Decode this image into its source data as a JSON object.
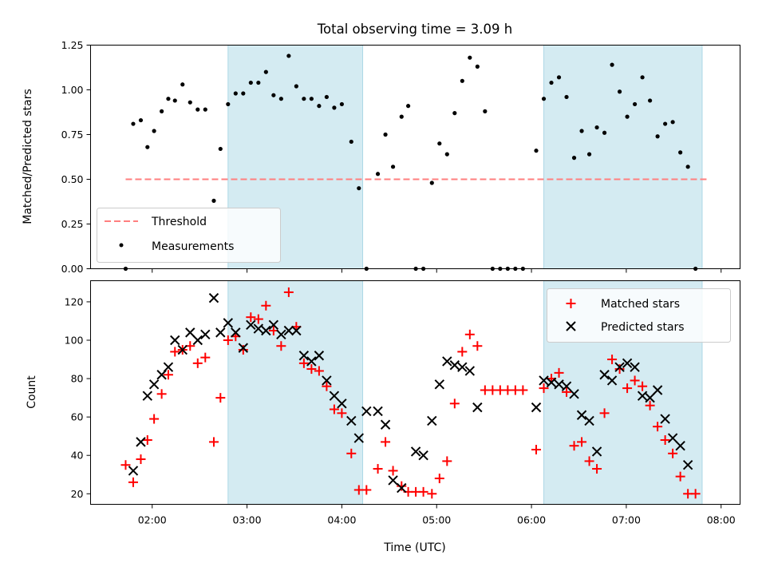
{
  "title": "Total observing time = 3.09 h",
  "colors": {
    "shade": "#add8e6",
    "threshold": "#ff7f7f",
    "measurements": "#000000",
    "matched": "#ff0000",
    "predicted": "#000000"
  },
  "x_axis": {
    "label": "Time (UTC)",
    "range_hours": [
      1.35,
      8.2
    ],
    "ticks": [
      {
        "value": 2,
        "label": "02:00"
      },
      {
        "value": 3,
        "label": "03:00"
      },
      {
        "value": 4,
        "label": "04:00"
      },
      {
        "value": 5,
        "label": "05:00"
      },
      {
        "value": 6,
        "label": "06:00"
      },
      {
        "value": 7,
        "label": "07:00"
      },
      {
        "value": 8,
        "label": "08:00"
      }
    ]
  },
  "shaded_intervals_hours": [
    [
      2.8,
      4.22
    ],
    [
      6.13,
      7.8
    ]
  ],
  "chart_data": [
    {
      "type": "scatter",
      "panel": "top",
      "ylabel": "Matched/Predicted stars",
      "ylim": [
        0,
        1.25
      ],
      "yticks": [
        "0.00",
        "0.25",
        "0.50",
        "0.75",
        "1.00",
        "1.25"
      ],
      "legend": {
        "placement": "lower-left",
        "entries": [
          "Threshold",
          "Measurements"
        ]
      },
      "threshold": {
        "name": "Threshold",
        "value": 0.5,
        "x_range": [
          1.72,
          7.88
        ],
        "style": "dashed"
      },
      "series": [
        {
          "name": "Measurements",
          "marker": "dot",
          "points": [
            [
              1.72,
              0.0
            ],
            [
              1.8,
              0.81
            ],
            [
              1.88,
              0.83
            ],
            [
              1.95,
              0.68
            ],
            [
              2.02,
              0.77
            ],
            [
              2.1,
              0.88
            ],
            [
              2.17,
              0.95
            ],
            [
              2.24,
              0.94
            ],
            [
              2.32,
              1.03
            ],
            [
              2.4,
              0.93
            ],
            [
              2.48,
              0.89
            ],
            [
              2.56,
              0.89
            ],
            [
              2.65,
              0.38
            ],
            [
              2.72,
              0.67
            ],
            [
              2.8,
              0.92
            ],
            [
              2.88,
              0.98
            ],
            [
              2.96,
              0.98
            ],
            [
              3.04,
              1.04
            ],
            [
              3.12,
              1.04
            ],
            [
              3.2,
              1.1
            ],
            [
              3.28,
              0.97
            ],
            [
              3.36,
              0.95
            ],
            [
              3.44,
              1.19
            ],
            [
              3.52,
              1.02
            ],
            [
              3.6,
              0.95
            ],
            [
              3.68,
              0.95
            ],
            [
              3.76,
              0.91
            ],
            [
              3.84,
              0.96
            ],
            [
              3.92,
              0.9
            ],
            [
              4.0,
              0.92
            ],
            [
              4.1,
              0.71
            ],
            [
              4.18,
              0.45
            ],
            [
              4.26,
              0.0
            ],
            [
              4.38,
              0.53
            ],
            [
              4.46,
              0.75
            ],
            [
              4.54,
              0.57
            ],
            [
              4.63,
              0.85
            ],
            [
              4.7,
              0.91
            ],
            [
              4.78,
              0.0
            ],
            [
              4.86,
              0.0
            ],
            [
              4.95,
              0.48
            ],
            [
              5.03,
              0.7
            ],
            [
              5.11,
              0.64
            ],
            [
              5.19,
              0.87
            ],
            [
              5.27,
              1.05
            ],
            [
              5.35,
              1.18
            ],
            [
              5.43,
              1.13
            ],
            [
              5.51,
              0.88
            ],
            [
              5.59,
              0.0
            ],
            [
              5.67,
              0.0
            ],
            [
              5.75,
              0.0
            ],
            [
              5.83,
              0.0
            ],
            [
              5.91,
              0.0
            ],
            [
              6.05,
              0.66
            ],
            [
              6.13,
              0.95
            ],
            [
              6.21,
              1.04
            ],
            [
              6.29,
              1.07
            ],
            [
              6.37,
              0.96
            ],
            [
              6.45,
              0.62
            ],
            [
              6.53,
              0.77
            ],
            [
              6.61,
              0.64
            ],
            [
              6.69,
              0.79
            ],
            [
              6.77,
              0.76
            ],
            [
              6.85,
              1.14
            ],
            [
              6.93,
              0.99
            ],
            [
              7.01,
              0.85
            ],
            [
              7.09,
              0.92
            ],
            [
              7.17,
              1.07
            ],
            [
              7.25,
              0.94
            ],
            [
              7.33,
              0.74
            ],
            [
              7.41,
              0.81
            ],
            [
              7.49,
              0.82
            ],
            [
              7.57,
              0.65
            ],
            [
              7.65,
              0.57
            ],
            [
              7.73,
              0.0
            ]
          ]
        }
      ]
    },
    {
      "type": "scatter",
      "panel": "bottom",
      "ylabel": "Count",
      "ylim": [
        14.5,
        131
      ],
      "yticks": [
        "20",
        "40",
        "60",
        "80",
        "100",
        "120"
      ],
      "legend": {
        "placement": "upper-right",
        "entries": [
          "Matched stars",
          "Predicted stars"
        ]
      },
      "series": [
        {
          "name": "Matched stars",
          "marker": "plus",
          "points": [
            [
              1.72,
              35
            ],
            [
              1.8,
              26
            ],
            [
              1.88,
              38
            ],
            [
              1.95,
              48
            ],
            [
              2.02,
              59
            ],
            [
              2.1,
              72
            ],
            [
              2.17,
              82
            ],
            [
              2.24,
              94
            ],
            [
              2.32,
              95
            ],
            [
              2.4,
              97
            ],
            [
              2.48,
              88
            ],
            [
              2.56,
              91
            ],
            [
              2.65,
              47
            ],
            [
              2.72,
              70
            ],
            [
              2.8,
              100
            ],
            [
              2.88,
              102
            ],
            [
              2.96,
              95
            ],
            [
              3.04,
              112
            ],
            [
              3.12,
              111
            ],
            [
              3.2,
              118
            ],
            [
              3.28,
              105
            ],
            [
              3.36,
              97
            ],
            [
              3.44,
              125
            ],
            [
              3.52,
              107
            ],
            [
              3.6,
              88
            ],
            [
              3.68,
              85
            ],
            [
              3.76,
              84
            ],
            [
              3.84,
              76
            ],
            [
              3.92,
              64
            ],
            [
              4.0,
              62
            ],
            [
              4.1,
              41
            ],
            [
              4.18,
              22
            ],
            [
              4.26,
              22
            ],
            [
              4.38,
              33
            ],
            [
              4.46,
              47
            ],
            [
              4.54,
              32
            ],
            [
              4.63,
              24
            ],
            [
              4.7,
              21
            ],
            [
              4.78,
              21
            ],
            [
              4.86,
              21
            ],
            [
              4.95,
              20
            ],
            [
              5.03,
              28
            ],
            [
              5.11,
              37
            ],
            [
              5.19,
              67
            ],
            [
              5.27,
              94
            ],
            [
              5.35,
              103
            ],
            [
              5.43,
              97
            ],
            [
              5.51,
              74
            ],
            [
              5.59,
              74
            ],
            [
              5.67,
              74
            ],
            [
              5.75,
              74
            ],
            [
              5.83,
              74
            ],
            [
              5.91,
              74
            ],
            [
              6.05,
              43
            ],
            [
              6.13,
              75
            ],
            [
              6.21,
              80
            ],
            [
              6.29,
              83
            ],
            [
              6.37,
              73
            ],
            [
              6.45,
              45
            ],
            [
              6.53,
              47
            ],
            [
              6.61,
              37
            ],
            [
              6.69,
              33
            ],
            [
              6.77,
              62
            ],
            [
              6.85,
              90
            ],
            [
              6.93,
              85
            ],
            [
              7.01,
              75
            ],
            [
              7.09,
              79
            ],
            [
              7.17,
              76
            ],
            [
              7.25,
              66
            ],
            [
              7.33,
              55
            ],
            [
              7.41,
              48
            ],
            [
              7.49,
              41
            ],
            [
              7.57,
              29
            ],
            [
              7.65,
              20
            ],
            [
              7.73,
              20
            ]
          ]
        },
        {
          "name": "Predicted stars",
          "marker": "x",
          "points": [
            [
              1.8,
              32
            ],
            [
              1.88,
              47
            ],
            [
              1.95,
              71
            ],
            [
              2.02,
              77
            ],
            [
              2.1,
              82
            ],
            [
              2.17,
              86
            ],
            [
              2.24,
              100
            ],
            [
              2.32,
              95
            ],
            [
              2.4,
              104
            ],
            [
              2.48,
              100
            ],
            [
              2.56,
              103
            ],
            [
              2.65,
              122
            ],
            [
              2.72,
              104
            ],
            [
              2.8,
              109
            ],
            [
              2.88,
              104
            ],
            [
              2.96,
              96
            ],
            [
              3.04,
              108
            ],
            [
              3.12,
              106
            ],
            [
              3.2,
              105
            ],
            [
              3.28,
              108
            ],
            [
              3.36,
              103
            ],
            [
              3.44,
              105
            ],
            [
              3.52,
              105
            ],
            [
              3.6,
              92
            ],
            [
              3.68,
              89
            ],
            [
              3.76,
              92
            ],
            [
              3.84,
              79
            ],
            [
              3.92,
              71
            ],
            [
              4.0,
              67
            ],
            [
              4.1,
              58
            ],
            [
              4.18,
              49
            ],
            [
              4.26,
              63
            ],
            [
              4.38,
              63
            ],
            [
              4.46,
              56
            ],
            [
              4.54,
              27
            ],
            [
              4.63,
              23
            ],
            [
              4.78,
              42
            ],
            [
              4.86,
              40
            ],
            [
              4.95,
              58
            ],
            [
              5.03,
              77
            ],
            [
              5.11,
              89
            ],
            [
              5.19,
              87
            ],
            [
              5.27,
              86
            ],
            [
              5.35,
              84
            ],
            [
              5.43,
              65
            ],
            [
              6.05,
              65
            ],
            [
              6.13,
              79
            ],
            [
              6.21,
              78
            ],
            [
              6.29,
              77
            ],
            [
              6.37,
              76
            ],
            [
              6.45,
              72
            ],
            [
              6.53,
              61
            ],
            [
              6.61,
              58
            ],
            [
              6.69,
              42
            ],
            [
              6.77,
              82
            ],
            [
              6.85,
              79
            ],
            [
              6.93,
              86
            ],
            [
              7.01,
              88
            ],
            [
              7.09,
              86
            ],
            [
              7.17,
              71
            ],
            [
              7.25,
              70
            ],
            [
              7.33,
              74
            ],
            [
              7.41,
              59
            ],
            [
              7.49,
              49
            ],
            [
              7.57,
              45
            ],
            [
              7.65,
              35
            ]
          ]
        }
      ]
    }
  ]
}
